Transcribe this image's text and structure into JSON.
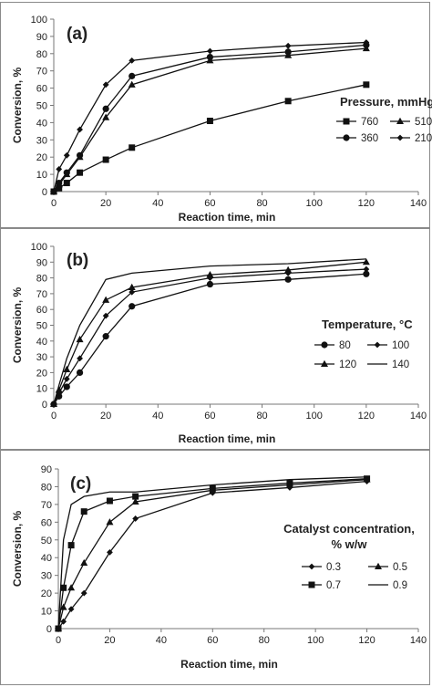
{
  "charts": [
    {
      "panel_label": "(a)",
      "xlabel": "Reaction time, min",
      "ylabel": "Conversion, %",
      "xlim": [
        0,
        140
      ],
      "ylim": [
        0,
        100
      ],
      "xticks": [
        "0",
        "20",
        "40",
        "60",
        "80",
        "100",
        "120",
        "140"
      ],
      "yticks": [
        "0",
        "10",
        "20",
        "30",
        "40",
        "50",
        "60",
        "70",
        "80",
        "90",
        "100"
      ],
      "legend_title": [
        "Pressure, mmHg"
      ],
      "legend_position": "right-center",
      "legend_order": [
        0,
        2,
        1,
        3
      ],
      "series": [
        {
          "name": "760",
          "marker": "square"
        },
        {
          "name": "360",
          "marker": "circle"
        },
        {
          "name": "510",
          "marker": "triangle"
        },
        {
          "name": "210",
          "marker": "diamond"
        }
      ]
    },
    {
      "panel_label": "(b)",
      "xlabel": "Reaction time, min",
      "ylabel": "Conversion, %",
      "xlim": [
        0,
        140
      ],
      "ylim": [
        0,
        100
      ],
      "xticks": [
        "0",
        "20",
        "40",
        "60",
        "80",
        "100",
        "120",
        "140"
      ],
      "yticks": [
        "0",
        "10",
        "20",
        "30",
        "40",
        "50",
        "60",
        "70",
        "80",
        "90",
        "100"
      ],
      "legend_title": [
        "Temperature, °C"
      ],
      "legend_position": "right-center",
      "legend_order": [
        0,
        2,
        1,
        3
      ],
      "series": [
        {
          "name": "80",
          "marker": "circle"
        },
        {
          "name": "120",
          "marker": "triangle"
        },
        {
          "name": "100",
          "marker": "diamond"
        },
        {
          "name": "140",
          "marker": "none"
        }
      ]
    },
    {
      "panel_label": "(c)",
      "xlabel": "Reaction time, min",
      "ylabel": "Conversion, %",
      "xlim": [
        0,
        140
      ],
      "ylim": [
        0,
        90
      ],
      "xticks": [
        "0",
        "20",
        "40",
        "60",
        "80",
        "100",
        "120",
        "140"
      ],
      "yticks": [
        "0",
        "10",
        "20",
        "30",
        "40",
        "50",
        "60",
        "70",
        "80",
        "90"
      ],
      "legend_title": [
        "Catalyst concentration,",
        "% w/w"
      ],
      "legend_position": "right-center",
      "legend_order": [
        0,
        2,
        1,
        3
      ],
      "series": [
        {
          "name": "0.3",
          "marker": "diamond"
        },
        {
          "name": "0.7",
          "marker": "square"
        },
        {
          "name": "0.5",
          "marker": "triangle"
        },
        {
          "name": "0.9",
          "marker": "none"
        }
      ]
    }
  ],
  "chart_data": [
    {
      "type": "line",
      "x": [
        0,
        2,
        5,
        10,
        20,
        30,
        60,
        90,
        120
      ],
      "series": [
        {
          "name": "760",
          "values": [
            0,
            2,
            5,
            11,
            18.5,
            25.5,
            41,
            52.5,
            62
          ]
        },
        {
          "name": "360",
          "values": [
            0,
            5,
            11,
            21,
            48,
            67,
            78,
            81,
            85
          ]
        },
        {
          "name": "510",
          "values": [
            0,
            4,
            10,
            20,
            43,
            62,
            76,
            79,
            83
          ]
        },
        {
          "name": "210",
          "values": [
            0,
            13,
            21,
            36,
            62,
            76,
            81.5,
            84.5,
            86.5
          ]
        }
      ],
      "xlabel": "Reaction time, min",
      "ylabel": "Conversion, %",
      "xlim": [
        0,
        140
      ],
      "ylim": [
        0,
        100
      ]
    },
    {
      "type": "line",
      "x": [
        0,
        2,
        5,
        10,
        20,
        30,
        60,
        90,
        120
      ],
      "series": [
        {
          "name": "80",
          "values": [
            0,
            5,
            11,
            20,
            43,
            62,
            76,
            79,
            82.5
          ]
        },
        {
          "name": "120",
          "values": [
            0,
            9,
            22,
            41,
            66,
            74,
            82,
            85,
            90
          ]
        },
        {
          "name": "100",
          "values": [
            0,
            7,
            16,
            29,
            56,
            71,
            80,
            83,
            85.5
          ]
        },
        {
          "name": "140",
          "values": [
            0,
            12,
            29,
            50,
            79,
            83,
            87.5,
            89,
            92
          ]
        }
      ],
      "xlabel": "Reaction time, min",
      "ylabel": "Conversion, %",
      "xlim": [
        0,
        140
      ],
      "ylim": [
        0,
        100
      ]
    },
    {
      "type": "line",
      "x": [
        0,
        2,
        5,
        10,
        20,
        30,
        60,
        90,
        120
      ],
      "series": [
        {
          "name": "0.3",
          "values": [
            0,
            4,
            11,
            20,
            43,
            62,
            76.5,
            79.5,
            83
          ]
        },
        {
          "name": "0.7",
          "values": [
            0,
            23,
            47,
            66,
            72,
            74.5,
            79,
            82,
            84.5
          ]
        },
        {
          "name": "0.5",
          "values": [
            0,
            12,
            23,
            37,
            60,
            71.5,
            78,
            81,
            84
          ]
        },
        {
          "name": "0.9",
          "values": [
            0,
            50,
            70,
            74.5,
            77,
            77,
            81,
            84,
            85.5
          ]
        }
      ],
      "xlabel": "Reaction time, min",
      "ylabel": "Conversion, %",
      "xlim": [
        0,
        140
      ],
      "ylim": [
        0,
        90
      ]
    }
  ]
}
